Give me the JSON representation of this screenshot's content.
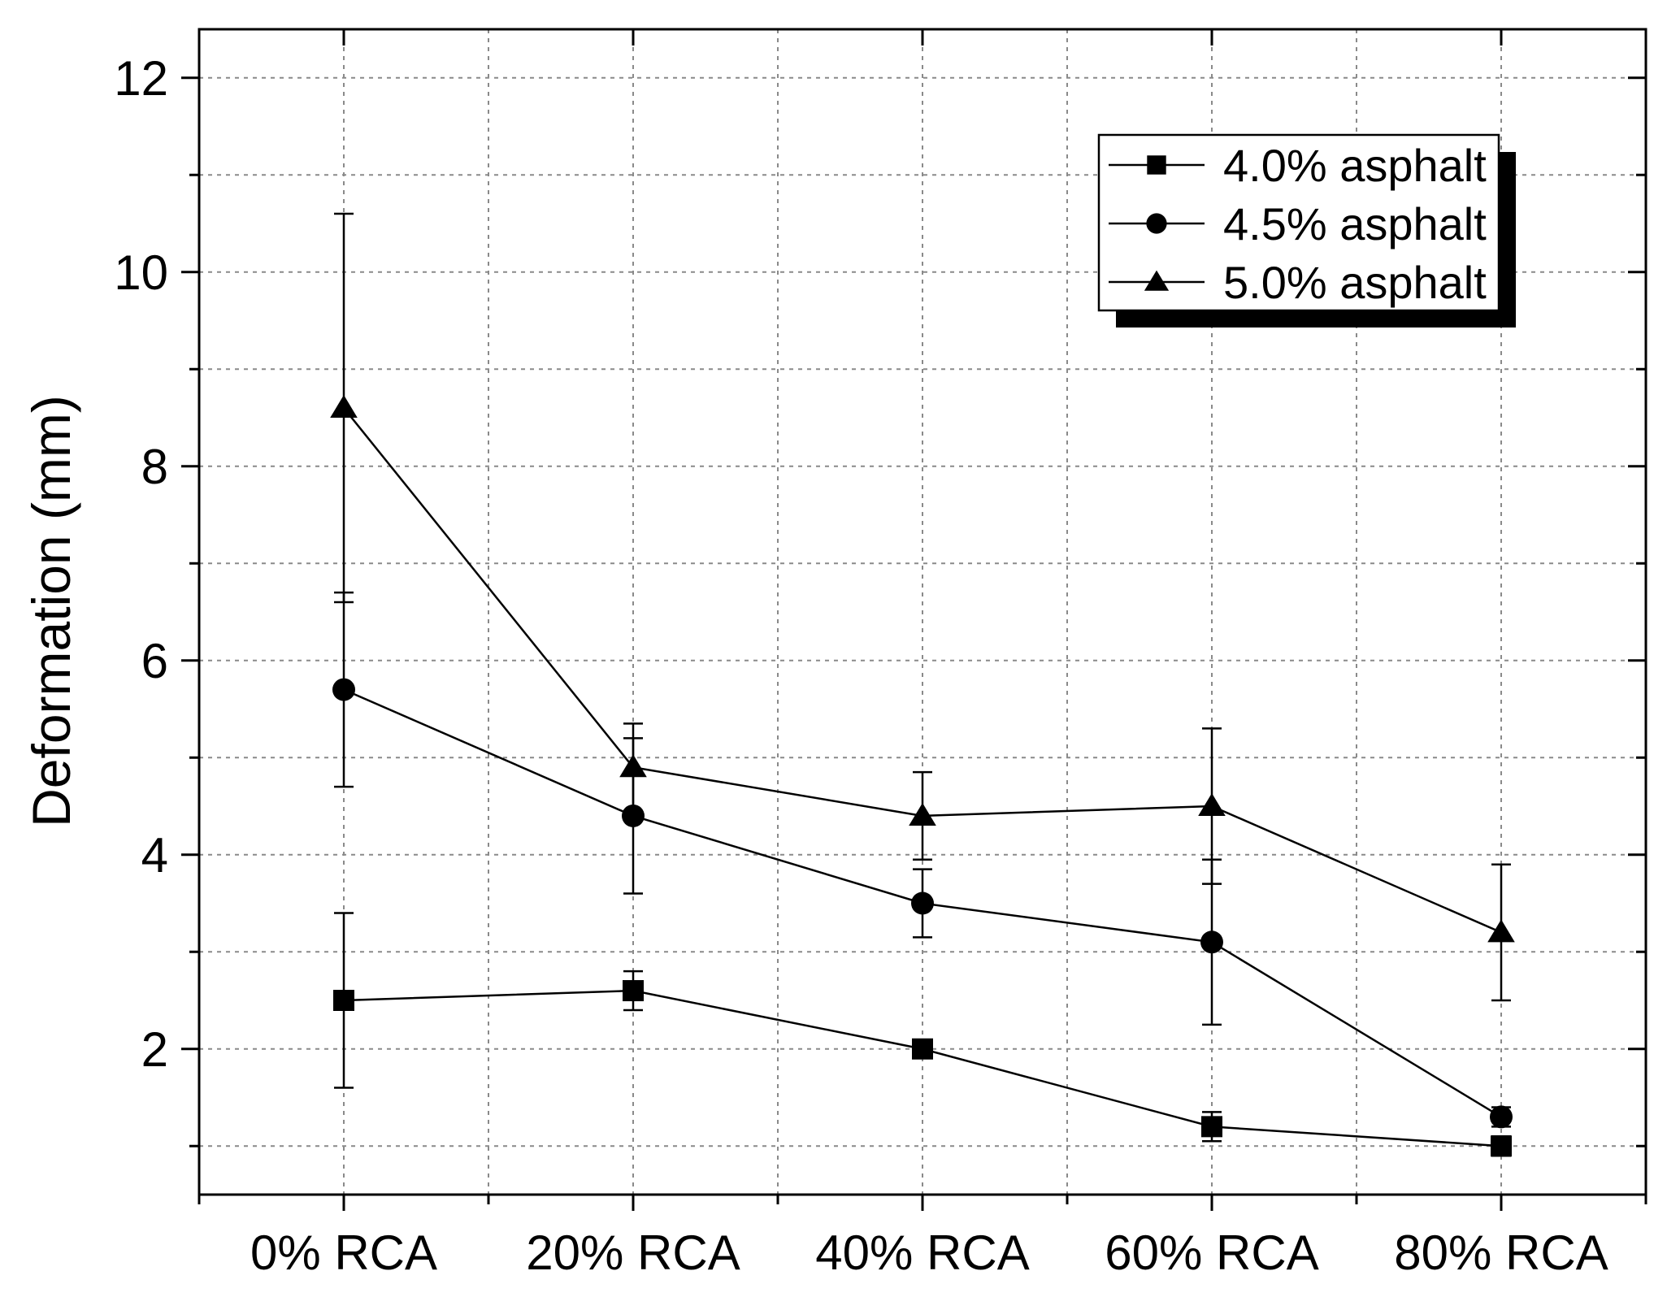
{
  "chart_data": {
    "type": "line",
    "title": "",
    "xlabel": "",
    "ylabel": "Deformation (mm)",
    "categories": [
      "0% RCA",
      "20% RCA",
      "40% RCA",
      "60% RCA",
      "80% RCA"
    ],
    "ylim": [
      0.5,
      12.5
    ],
    "yticks": [
      2,
      4,
      6,
      8,
      10,
      12
    ],
    "ytick_labels": [
      "2",
      "4",
      "6",
      "8",
      "10",
      "12"
    ],
    "grid": true,
    "legend_position": "top-right",
    "series": [
      {
        "name": "4.0% asphalt",
        "marker": "square",
        "values": [
          2.5,
          2.6,
          2.0,
          1.2,
          1.0
        ],
        "errors": [
          0.9,
          0.2,
          0.05,
          0.15,
          0.1
        ]
      },
      {
        "name": "4.5% asphalt",
        "marker": "circle",
        "values": [
          5.7,
          4.4,
          3.5,
          3.1,
          1.3
        ],
        "errors": [
          1.0,
          0.8,
          0.35,
          0.85,
          0.1
        ]
      },
      {
        "name": "5.0% asphalt",
        "marker": "triangle",
        "values": [
          8.6,
          4.9,
          4.4,
          4.5,
          3.2
        ],
        "errors": [
          2.0,
          0.45,
          0.45,
          0.8,
          0.7
        ]
      }
    ]
  }
}
